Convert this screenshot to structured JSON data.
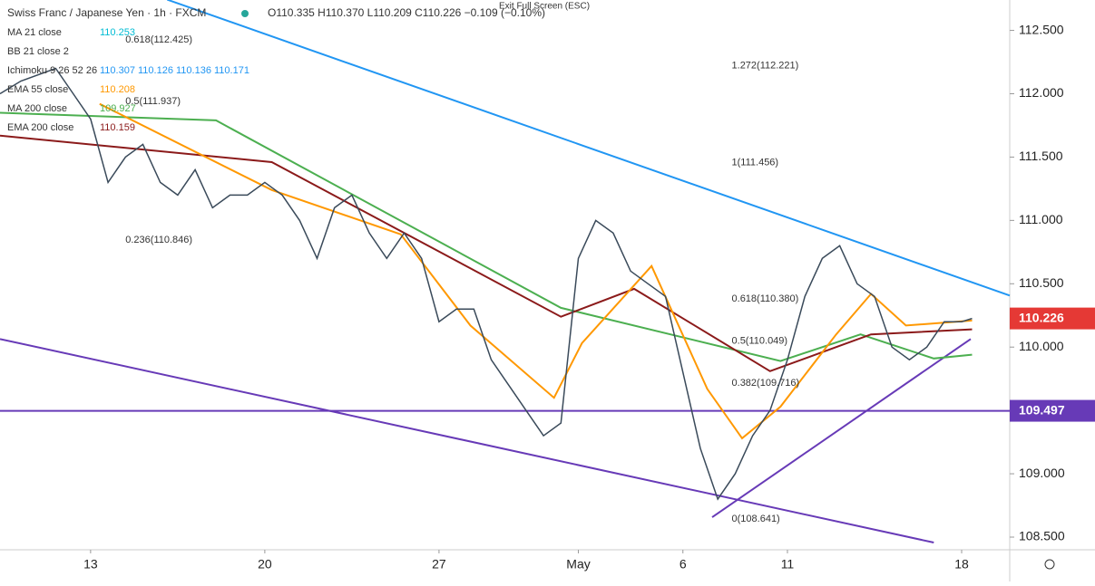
{
  "chart_data": {
    "type": "line",
    "title": "Swiss Franc / Japanese Yen · 1h · FXCM",
    "ohlc_text": "O110.335 H110.370 L110.209 C110.226 −0.109 (−0.10%)",
    "exit_text": "Exit Full Screen (ESC)",
    "indicators": [
      {
        "name": "MA 21 close",
        "value": "110.253",
        "color": "#00bcd4"
      },
      {
        "name": "BB 21 close 2",
        "value": "",
        "color": "#999999"
      },
      {
        "name": "Ichimoku 9 26 52 26",
        "value": "110.307 110.126 110.136 110.171",
        "color": "#2196f3"
      },
      {
        "name": "EMA 55 close",
        "value": "110.208",
        "color": "#ff9800"
      },
      {
        "name": "MA 200 close",
        "value": "109.927",
        "color": "#4caf50"
      },
      {
        "name": "EMA 200 close",
        "value": "110.159",
        "color": "#8b1a1a"
      }
    ],
    "fib_labels": [
      {
        "text": "0.618(112.425)",
        "price": 112.425,
        "x": 1.0,
        "color": "#e91e63"
      },
      {
        "text": "0.5(111.937)",
        "price": 111.937,
        "x": 1.0,
        "color": "#4caf50"
      },
      {
        "text": "0.236(110.846)",
        "price": 110.846,
        "x": 1.0,
        "color": "#555555"
      },
      {
        "text": "1.272(112.221)",
        "price": 112.221,
        "x": 18.4,
        "color": "#8bc34a"
      },
      {
        "text": "1(111.456)",
        "price": 111.456,
        "x": 18.4,
        "color": "#3f51b5"
      },
      {
        "text": "0.618(110.380)",
        "price": 110.38,
        "x": 18.4,
        "color": "#3f51b5"
      },
      {
        "text": "0.5(110.049)",
        "price": 110.049,
        "x": 18.4,
        "color": "#4caf50"
      },
      {
        "text": "0.382(109.716)",
        "price": 109.716,
        "x": 18.4,
        "color": "#3f51b5"
      },
      {
        "text": "0(108.641)",
        "price": 108.641,
        "x": 18.4,
        "color": "#3f51b5"
      }
    ],
    "x": [
      -2.6,
      -2,
      -1,
      -0.5,
      0,
      0.5,
      1,
      1.5,
      2,
      2.5,
      3,
      3.5,
      4,
      4.5,
      5,
      5.5,
      6,
      6.5,
      7,
      7.5,
      8,
      8.5,
      9,
      9.5,
      10,
      10.5,
      11,
      11.5,
      12,
      12.5,
      13,
      13.5,
      14,
      14.5,
      15,
      15.5,
      16,
      16.5,
      17,
      17.5,
      18,
      18.5,
      19,
      19.5,
      20,
      20.5,
      21,
      21.5,
      22,
      22.5,
      23,
      23.5,
      24,
      24.5,
      25,
      25.3
    ],
    "series": [
      {
        "name": "Close",
        "color": "#3a4a5a",
        "values": [
          112.0,
          112.1,
          112.2,
          112.0,
          111.8,
          111.3,
          111.5,
          111.6,
          111.3,
          111.2,
          111.4,
          111.1,
          111.2,
          111.2,
          111.3,
          111.2,
          111.0,
          110.7,
          111.1,
          111.2,
          110.9,
          110.7,
          110.9,
          110.7,
          110.2,
          110.3,
          110.3,
          109.9,
          109.7,
          109.5,
          109.3,
          109.4,
          110.7,
          111.0,
          110.9,
          110.6,
          110.5,
          110.4,
          109.8,
          109.2,
          108.8,
          109.0,
          109.3,
          109.5,
          109.9,
          110.4,
          110.7,
          110.8,
          110.5,
          110.4,
          110.0,
          109.9,
          110.0,
          110.2,
          110.2,
          110.226
        ]
      }
    ],
    "lines": [
      {
        "name": "MA 200",
        "color": "#4caf50",
        "x": [
          -2.6,
          3.6,
          13.5,
          19.8,
          22.1,
          24.2,
          25.3
        ],
        "values": [
          111.85,
          111.79,
          110.31,
          109.89,
          110.1,
          109.91,
          109.94
        ]
      },
      {
        "name": "EMA 200",
        "color": "#8b1a1a",
        "x": [
          -2.6,
          5.2,
          13.5,
          15.6,
          19.5,
          22.4,
          25.3
        ],
        "values": [
          111.67,
          111.46,
          110.24,
          110.46,
          109.81,
          110.1,
          110.14
        ]
      },
      {
        "name": "EMA 55",
        "color": "#ff9800",
        "x": [
          0.26,
          5.2,
          8.9,
          10.9,
          13.3,
          14.1,
          16.1,
          17.7,
          18.7,
          19.8,
          21.4,
          22.4,
          23.4,
          25.3
        ],
        "values": [
          111.92,
          111.24,
          110.89,
          110.17,
          109.6,
          110.03,
          110.64,
          109.67,
          109.28,
          109.53,
          110.1,
          110.42,
          110.17,
          110.21
        ]
      }
    ],
    "trendlines": [
      {
        "color": "#2196f3",
        "x": [
          2.2,
          26.38
        ],
        "values": [
          112.743,
          110.407
        ]
      },
      {
        "color": "#673ab7",
        "x": [
          -2.6,
          24.2
        ],
        "values": [
          110.064,
          108.457
        ]
      },
      {
        "color": "#673ab7",
        "x": [
          17.84,
          25.26
        ],
        "values": [
          108.657,
          110.064
        ]
      }
    ],
    "hline": {
      "value": 109.497,
      "label": "109.497",
      "color": "#673ab7"
    },
    "last_price": {
      "value": 110.226,
      "label": "110.226",
      "color": "#e53935"
    },
    "xlim": [
      -2.6,
      26.38
    ],
    "ylim": [
      108.4,
      112.74
    ],
    "xticks": [
      {
        "value": 0,
        "label": "13"
      },
      {
        "value": 5,
        "label": "20"
      },
      {
        "value": 10,
        "label": "27"
      },
      {
        "value": 14,
        "label": "May"
      },
      {
        "value": 17,
        "label": "6"
      },
      {
        "value": 20,
        "label": "11"
      },
      {
        "value": 25,
        "label": "18"
      }
    ],
    "yticks": [
      {
        "value": 108.5,
        "label": "108.500"
      },
      {
        "value": 109,
        "label": "109.000"
      },
      {
        "value": 109.5,
        "label": "109.500"
      },
      {
        "value": 110,
        "label": "110.000"
      },
      {
        "value": 110.5,
        "label": "110.500"
      },
      {
        "value": 111,
        "label": "111.000"
      },
      {
        "value": 111.5,
        "label": "111.500"
      },
      {
        "value": 112,
        "label": "112.000"
      },
      {
        "value": 112.5,
        "label": "112.500"
      }
    ]
  }
}
